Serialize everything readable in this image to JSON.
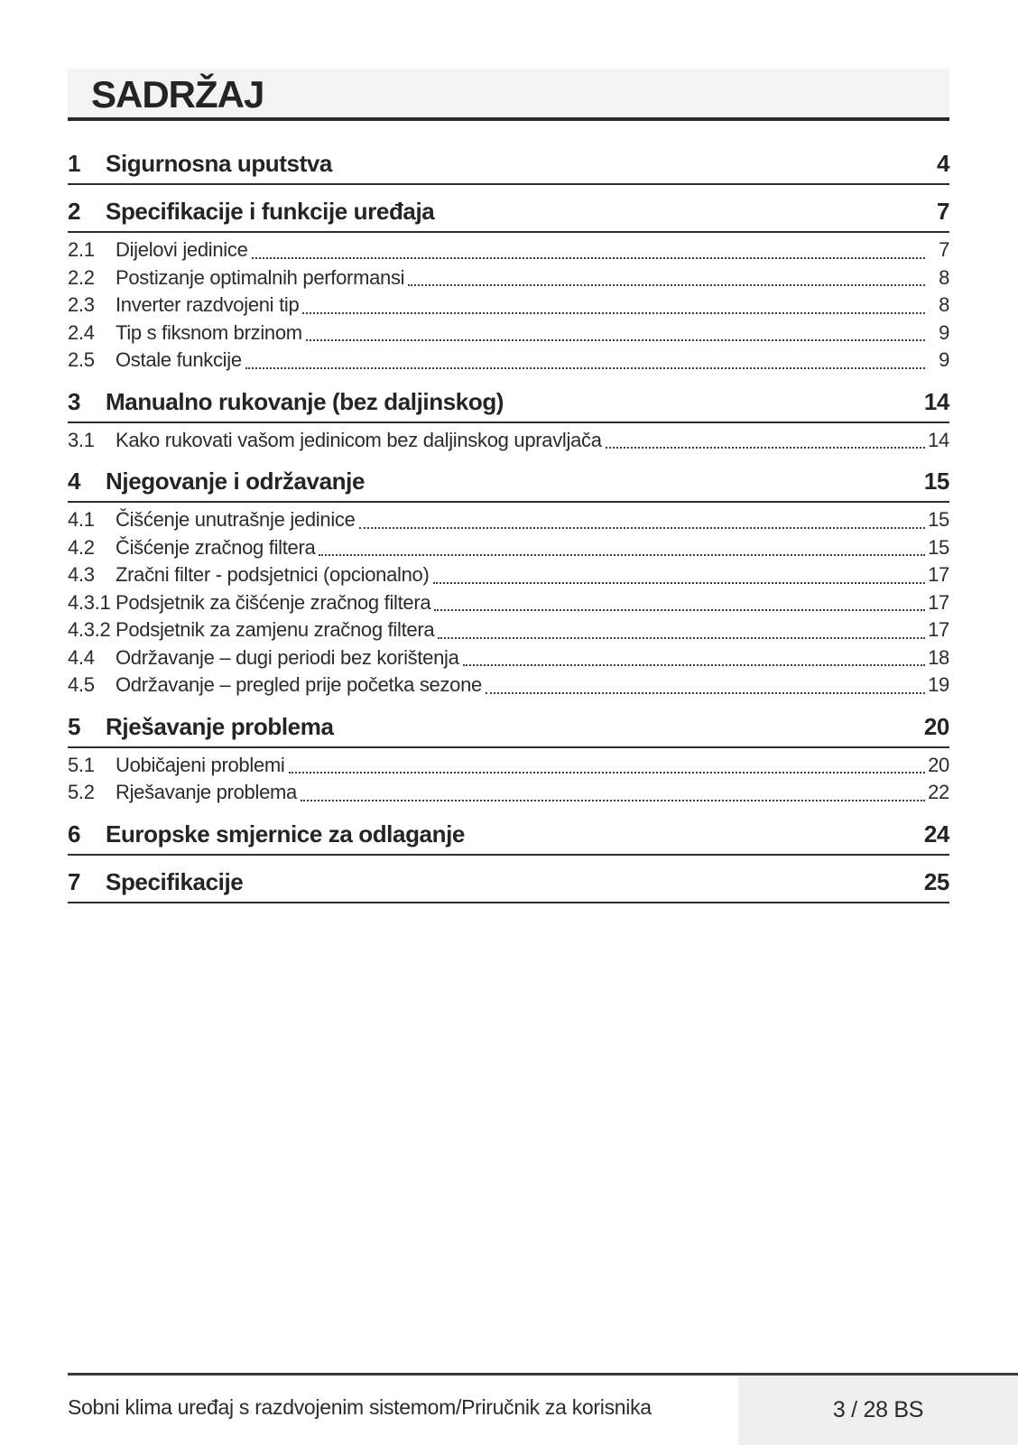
{
  "page": {
    "title": "SADRŽAJ",
    "footer": {
      "left": "Sobni klima uređaj s razdvojenim sistemom/Priručnik za korisnika",
      "right": "3 / 28 BS"
    }
  },
  "colors": {
    "text": "#242424",
    "rule": "#2e2e2e",
    "title_band_bg": "#f3f3f3",
    "footer_box_bg": "#efefef"
  },
  "toc": {
    "sections": [
      {
        "num": "1",
        "label": "Sigurnosna uputstva",
        "page": "4",
        "entries": []
      },
      {
        "num": "2",
        "label": "Specifikacije i funkcije uređaja",
        "page": "7",
        "entries": [
          {
            "num": "2.1",
            "label": "Dijelovi jedinice",
            "page": "7"
          },
          {
            "num": "2.2",
            "label": "Postizanje optimalnih performansi",
            "page": "8"
          },
          {
            "num": "2.3",
            "label": "Inverter razdvojeni tip",
            "page": "8"
          },
          {
            "num": "2.4",
            "label": "Tip s fiksnom brzinom",
            "page": "9"
          },
          {
            "num": "2.5",
            "label": "Ostale funkcije",
            "page": "9"
          }
        ]
      },
      {
        "num": "3",
        "label": "Manualno rukovanje (bez daljinskog)",
        "page": "14",
        "entries": [
          {
            "num": "3.1",
            "label": "Kako rukovati vašom jedinicom bez daljinskog upravljača",
            "page": "14"
          }
        ]
      },
      {
        "num": "4",
        "label": "Njegovanje i održavanje",
        "page": "15",
        "entries": [
          {
            "num": "4.1",
            "label": "Čišćenje unutrašnje jedinice",
            "page": "15"
          },
          {
            "num": "4.2",
            "label": "Čišćenje zračnog filtera",
            "page": "15"
          },
          {
            "num": "4.3",
            "label": "Zračni filter - podsjetnici (opcionalno)",
            "page": "17"
          },
          {
            "num": "4.3.1",
            "label": "Podsjetnik za čišćenje zračnog filtera",
            "page": "17"
          },
          {
            "num": "4.3.2",
            "label": "Podsjetnik za zamjenu zračnog filtera",
            "page": "17"
          },
          {
            "num": "4.4",
            "label": "Održavanje – dugi periodi bez korištenja",
            "page": "18"
          },
          {
            "num": "4.5",
            "label": "Održavanje – pregled prije početka sezone",
            "page": "19"
          }
        ]
      },
      {
        "num": "5",
        "label": "Rješavanje problema",
        "page": "20",
        "entries": [
          {
            "num": "5.1",
            "label": "Uobičajeni problemi",
            "page": "20"
          },
          {
            "num": "5.2",
            "label": "Rješavanje problema",
            "page": "22"
          }
        ]
      },
      {
        "num": "6",
        "label": "Europske smjernice za odlaganje",
        "page": "24",
        "entries": []
      },
      {
        "num": "7",
        "label": "Specifikacije",
        "page": "25",
        "entries": []
      }
    ]
  }
}
